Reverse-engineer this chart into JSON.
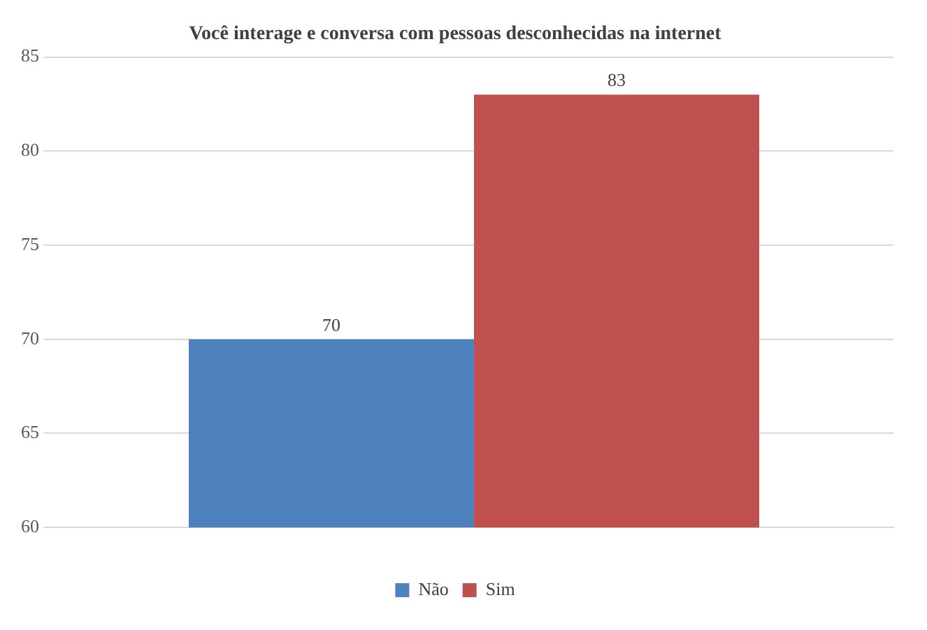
{
  "chart_data": {
    "type": "bar",
    "title": "Você interage e conversa com pessoas desconhecidas na internet",
    "categories": [
      null
    ],
    "series": [
      {
        "name": "Não",
        "color": "#4f81bd",
        "values": [
          70
        ]
      },
      {
        "name": "Sim",
        "color": "#c0504d",
        "values": [
          83
        ]
      }
    ],
    "ylim": [
      60,
      85
    ],
    "yticks": [
      60,
      65,
      70,
      75,
      80,
      85
    ],
    "grid": "y",
    "legend": "bottom",
    "data_labels": true
  }
}
